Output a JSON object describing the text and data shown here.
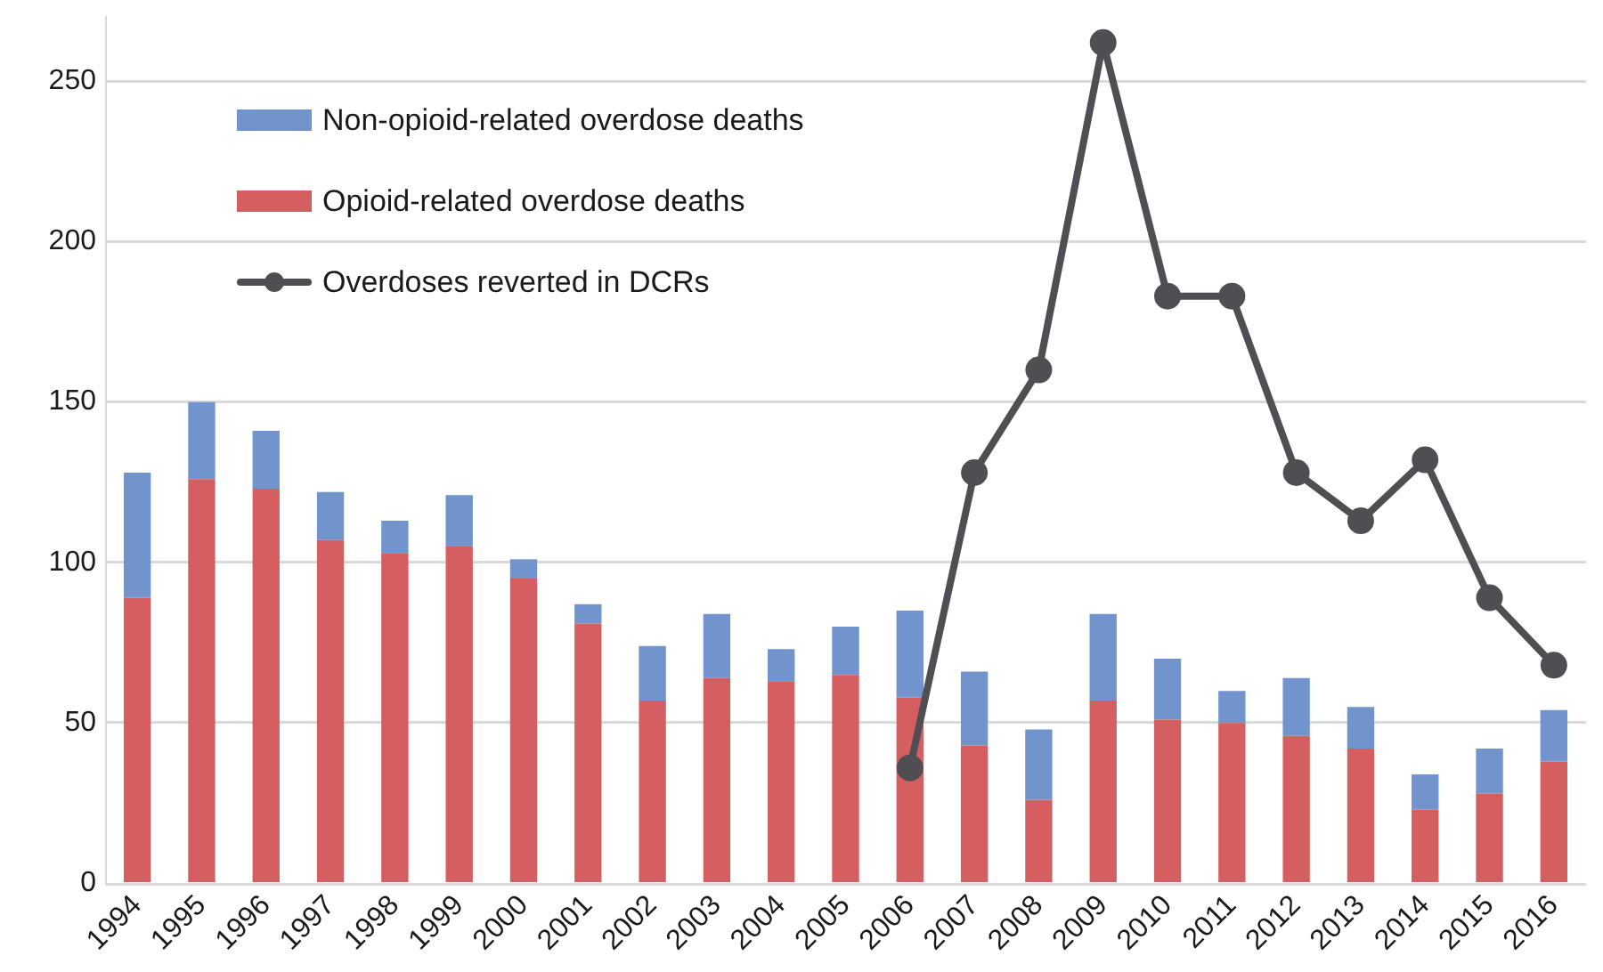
{
  "chart_data": {
    "type": "bar",
    "categories": [
      "1994",
      "1995",
      "1996",
      "1997",
      "1998",
      "1999",
      "2000",
      "2001",
      "2002",
      "2003",
      "2004",
      "2005",
      "2006",
      "2007",
      "2008",
      "2009",
      "2010",
      "2011",
      "2012",
      "2013",
      "2014",
      "2015",
      "2016"
    ],
    "stacked": true,
    "series": [
      {
        "name": "Opioid-related overdose deaths",
        "color": "#d55f60",
        "values": [
          89,
          126,
          123,
          107,
          103,
          105,
          95,
          81,
          57,
          64,
          63,
          65,
          58,
          43,
          26,
          57,
          51,
          50,
          46,
          42,
          23,
          28,
          38
        ]
      },
      {
        "name": "Non-opioid-related overdose deaths",
        "color": "#7294cc",
        "values": [
          39,
          24,
          18,
          15,
          10,
          16,
          6,
          6,
          17,
          20,
          10,
          15,
          27,
          23,
          22,
          27,
          19,
          10,
          18,
          13,
          11,
          14,
          16
        ]
      },
      {
        "name": "Overdoses reverted in DCRs",
        "type": "line",
        "color": "#504e52",
        "values": [
          null,
          null,
          null,
          null,
          null,
          null,
          null,
          null,
          null,
          null,
          null,
          null,
          36,
          128,
          160,
          262,
          183,
          183,
          128,
          113,
          132,
          89,
          68
        ]
      }
    ],
    "marker": "circle",
    "ylim": [
      0,
      270
    ],
    "yticks": [
      0,
      50,
      100,
      150,
      200,
      250
    ],
    "grid": "y",
    "legend": "top left"
  }
}
